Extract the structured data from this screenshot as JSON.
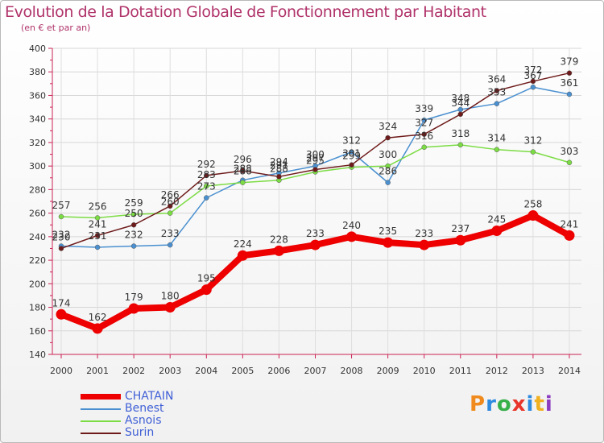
{
  "header": {
    "title": "Evolution de la Dotation Globale de Fonctionnement par Habitant",
    "subtitle": "(en € et par an)"
  },
  "chart_data": {
    "type": "line",
    "title": "Evolution de la Dotation Globale de Fonctionnement par Habitant",
    "subtitle": "(en € et par an)",
    "xlabel": "",
    "ylabel": "",
    "ylim": [
      140,
      400
    ],
    "y_ticks": [
      140,
      160,
      180,
      200,
      220,
      240,
      260,
      280,
      300,
      320,
      340,
      360,
      380,
      400
    ],
    "categories": [
      "2000",
      "2001",
      "2002",
      "2003",
      "2004",
      "2005",
      "2006",
      "2007",
      "2008",
      "2009",
      "2010",
      "2011",
      "2012",
      "2013",
      "2014"
    ],
    "grid": true,
    "legend_position": "bottom-left",
    "series": [
      {
        "name": "CHATAIN",
        "color": "#ee0000",
        "highlight": true,
        "values": [
          174,
          162,
          179,
          180,
          195,
          224,
          228,
          233,
          240,
          235,
          233,
          237,
          245,
          258,
          241
        ]
      },
      {
        "name": "Benest",
        "color": "#4a90d0",
        "values": [
          232,
          231,
          232,
          233,
          273,
          288,
          294,
          300,
          312,
          286,
          339,
          348,
          353,
          367,
          361
        ]
      },
      {
        "name": "Asnois",
        "color": "#7cdc44",
        "values": [
          257,
          256,
          259,
          260,
          283,
          286,
          288,
          295,
          299,
          300,
          316,
          318,
          314,
          312,
          303
        ]
      },
      {
        "name": "Surin",
        "color": "#6e1a1a",
        "values": [
          230,
          241,
          250,
          266,
          292,
          296,
          291,
          297,
          301,
          324,
          327,
          344,
          364,
          372,
          379
        ]
      }
    ]
  },
  "logo": {
    "letters": [
      "P",
      "r",
      "o",
      "x",
      "i",
      "t",
      "i"
    ],
    "colors": [
      "#f08a1c",
      "#2f8be0",
      "#38b04a",
      "#e8342a",
      "#2f8be0",
      "#f0b020",
      "#8c3cc0"
    ]
  }
}
